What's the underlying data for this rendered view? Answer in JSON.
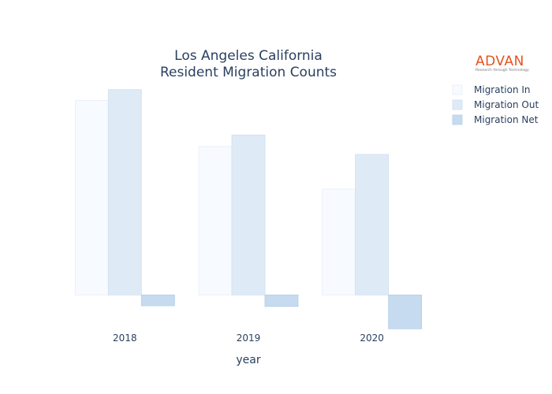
{
  "logo": {
    "brand": "ADVAN",
    "tagline": "Research through Technology",
    "color": "#e2521d"
  },
  "chart_data": {
    "type": "bar",
    "title": [
      "Los Angeles California",
      "Resident Migration Counts"
    ],
    "xlabel": "year",
    "ylabel": "",
    "categories": [
      "2018",
      "2019",
      "2020"
    ],
    "series": [
      {
        "name": "Migration In",
        "values": [
          270000,
          206000,
          147000
        ],
        "color": "#f7faff",
        "stroke": "#e8eef6"
      },
      {
        "name": "Migration Out",
        "values": [
          285000,
          222000,
          195000
        ],
        "color": "#deebf7",
        "stroke": "#d0dff0"
      },
      {
        "name": "Migration Net",
        "values": [
          -15000,
          -16000,
          -47000
        ],
        "color": "#c6dbef",
        "stroke": "#b3cde6"
      }
    ],
    "ylim": [
      -50000,
      300000
    ],
    "grid": false,
    "legend": "top-right"
  }
}
